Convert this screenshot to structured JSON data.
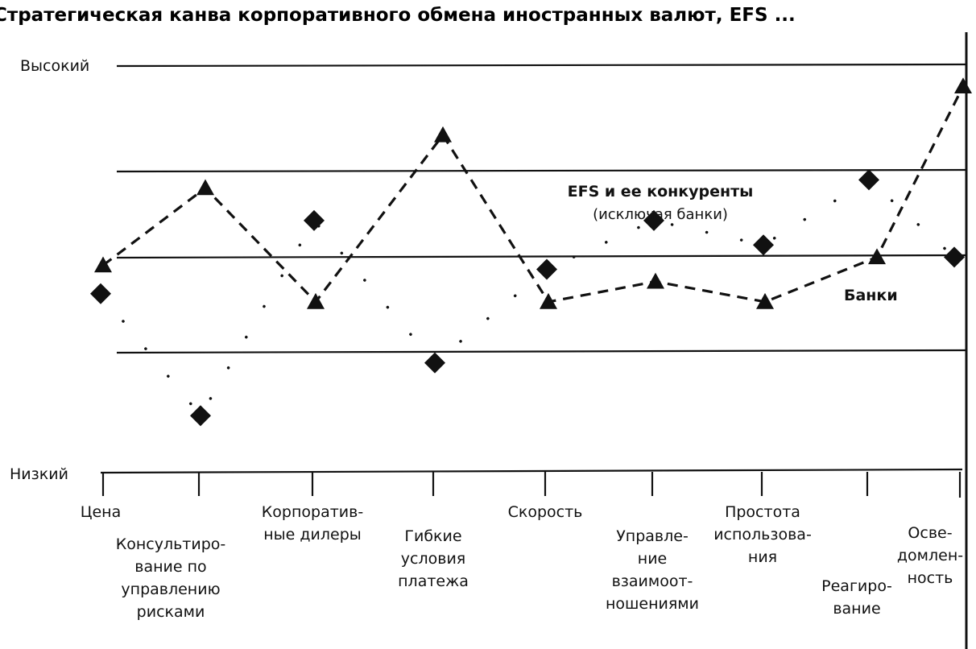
{
  "chart_data": {
    "type": "line",
    "title": "Стратегическая канва корпоративного обмена иностранных валют, EFS ...",
    "y_top_label": "Высокий",
    "y_bottom_label": "Низкий",
    "ylim": [
      0,
      10
    ],
    "categories": [
      [
        "Цена"
      ],
      [
        "Консультиро-",
        "вание по",
        "управлению",
        "рисками"
      ],
      [
        "Корпоратив-",
        "ные дилеры"
      ],
      [
        "Гибкие",
        "условия",
        "платежа"
      ],
      [
        "Скорость"
      ],
      [
        "Управле-",
        "ние",
        "взаимоот-",
        "ношениями"
      ],
      [
        "Простота",
        "использова-",
        "ния"
      ],
      [
        "Реагиро-",
        "вание"
      ],
      [
        "Осве-",
        "домлен-",
        "ность"
      ]
    ],
    "series": [
      {
        "name": "Банки",
        "marker": "triangle",
        "line_style": "dashed",
        "values": [
          {
            "x": 0,
            "y": 5.1
          },
          {
            "x": 1,
            "y": 7.0
          },
          {
            "x": 2,
            "y": 4.2
          },
          {
            "x": 3,
            "y": 8.3
          },
          {
            "x": 4,
            "y": 4.2
          },
          {
            "x": 5,
            "y": 4.7
          },
          {
            "x": 6,
            "y": 4.2
          },
          {
            "x": 7,
            "y": 5.3
          },
          {
            "x": 8,
            "y": 9.5
          }
        ]
      },
      {
        "name": "EFS и ее конкуренты",
        "name_note": "(исключая банки)",
        "marker": "diamond",
        "line_style": "dotted",
        "values": [
          {
            "x": 0,
            "y": 4.4
          },
          {
            "x": 1,
            "y": 1.4
          },
          {
            "x": 2,
            "y": 6.2
          },
          {
            "x": 3,
            "y": 2.7
          },
          {
            "x": 4,
            "y": 5.0
          },
          {
            "x": 5,
            "y": 6.2
          },
          {
            "x": 6,
            "y": 5.6
          },
          {
            "x": 7,
            "y": 7.2
          },
          {
            "x": 8,
            "y": 5.3
          }
        ]
      }
    ],
    "legend": {
      "efs_label": "EFS и ее конкуренты",
      "efs_note": "(исключая банки)",
      "banks_label": "Банки"
    }
  },
  "colors": {
    "ink": "#111111",
    "background": "#ffffff"
  }
}
